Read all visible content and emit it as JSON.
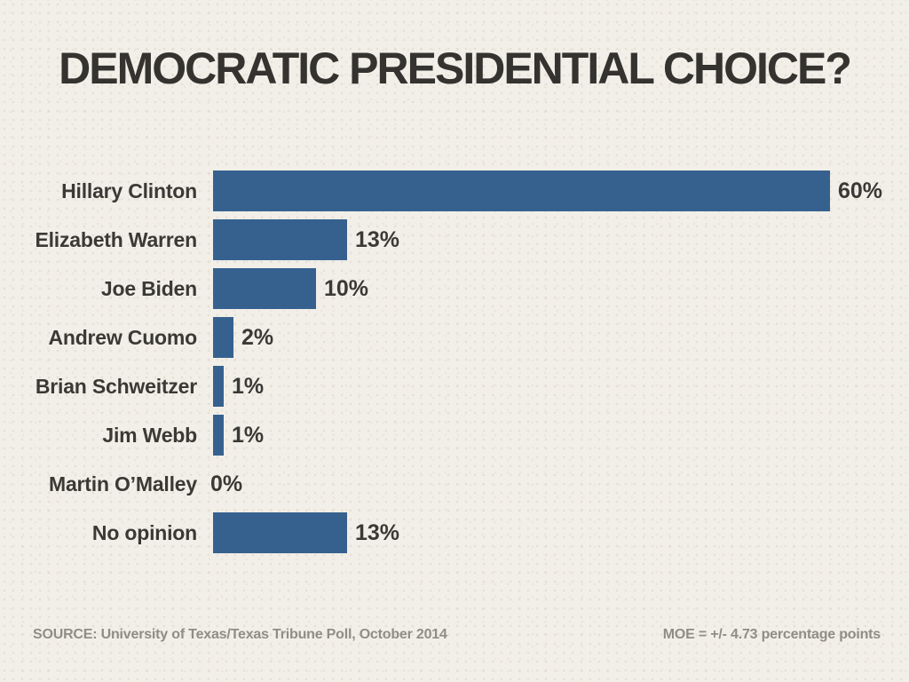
{
  "slide": {
    "title": "DEMOCRATIC PRESIDENTIAL CHOICE?"
  },
  "chart_data": {
    "type": "bar",
    "orientation": "horizontal",
    "title": "DEMOCRATIC PRESIDENTIAL CHOICE?",
    "categories": [
      "Hillary Clinton",
      "Elizabeth Warren",
      "Joe Biden",
      "Andrew Cuomo",
      "Brian Schweitzer",
      "Jim Webb",
      "Martin O’Malley",
      "No opinion"
    ],
    "values": [
      60,
      13,
      10,
      2,
      1,
      1,
      0,
      13
    ],
    "value_labels": [
      "60%",
      "13%",
      "10%",
      "2%",
      "1%",
      "1%",
      "0%",
      "13%"
    ],
    "xlim": [
      0,
      60
    ],
    "grid": false,
    "legend": "none",
    "bar_color": "#36618f",
    "text_color": "#3a3934",
    "background_color": "#f2efe8"
  },
  "footer": {
    "source_label": "SOURCE: University of Texas/Texas Tribune Poll, October 2014",
    "moe_label": "MOE = +/- 4.73 percentage points"
  }
}
